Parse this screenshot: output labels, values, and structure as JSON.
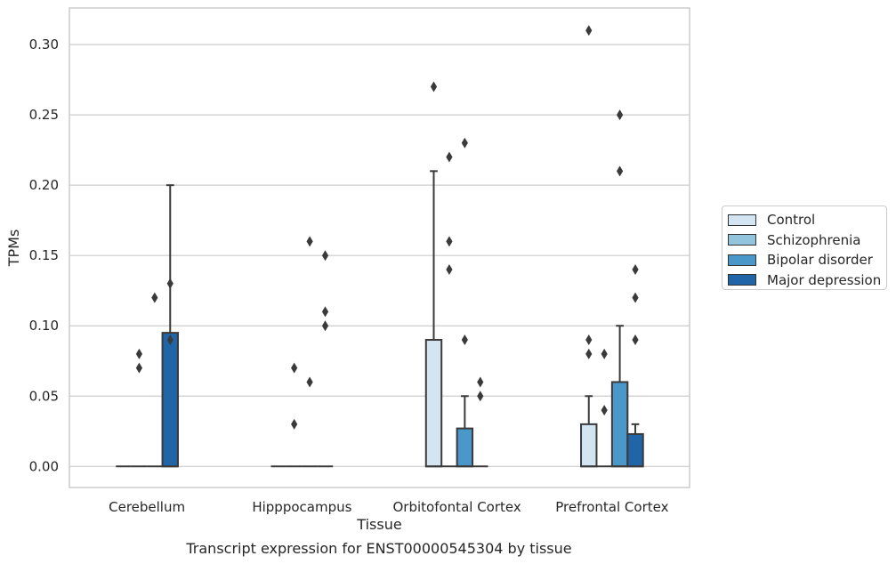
{
  "colors": {
    "Control": "#d3e4f3",
    "Schizophrenia": "#93c4de",
    "Bipolar disorder": "#4a98c9",
    "Major depression": "#2165a9",
    "edge": "#3a3a3a",
    "grid": "#cccccc"
  },
  "chart_data": {
    "type": "boxplot",
    "title": "Transcript expression for ENST00000545304 by tissue",
    "xlabel": "Tissue",
    "ylabel": "TPMs",
    "ylim": [
      -0.015,
      0.326
    ],
    "yticks": [
      "0.00",
      "0.05",
      "0.10",
      "0.15",
      "0.20",
      "0.25",
      "0.30"
    ],
    "categories": [
      "Cerebellum",
      "Hipppocampus",
      "Orbitofontal Cortex",
      "Prefrontal Cortex"
    ],
    "legend_position": "right",
    "grid": true,
    "series": [
      {
        "name": "Control",
        "boxes": [
          {
            "q1": 0,
            "median": 0,
            "q3": 0,
            "whisker_low": 0,
            "whisker_high": 0,
            "outliers": []
          },
          {
            "q1": 0,
            "median": 0,
            "q3": 0,
            "whisker_low": 0,
            "whisker_high": 0,
            "outliers": []
          },
          {
            "q1": 0,
            "median": 0,
            "q3": 0.09,
            "whisker_low": 0,
            "whisker_high": 0.21,
            "outliers": [
              0.27
            ]
          },
          {
            "q1": 0,
            "median": 0,
            "q3": 0.03,
            "whisker_low": 0,
            "whisker_high": 0.05,
            "outliers": [
              0.31,
              0.09,
              0.08
            ]
          }
        ]
      },
      {
        "name": "Schizophrenia",
        "boxes": [
          {
            "q1": 0,
            "median": 0,
            "q3": 0,
            "whisker_low": 0,
            "whisker_high": 0,
            "outliers": [
              0.08,
              0.07
            ]
          },
          {
            "q1": 0,
            "median": 0,
            "q3": 0,
            "whisker_low": 0,
            "whisker_high": 0,
            "outliers": [
              0.07,
              0.03
            ]
          },
          {
            "q1": 0,
            "median": 0,
            "q3": 0,
            "whisker_low": 0,
            "whisker_high": 0,
            "outliers": [
              0.22,
              0.16,
              0.14
            ]
          },
          {
            "q1": 0,
            "median": 0,
            "q3": 0,
            "whisker_low": 0,
            "whisker_high": 0,
            "outliers": [
              0.08,
              0.04
            ]
          }
        ]
      },
      {
        "name": "Bipolar disorder",
        "boxes": [
          {
            "q1": 0,
            "median": 0,
            "q3": 0,
            "whisker_low": 0,
            "whisker_high": 0,
            "outliers": [
              0.12
            ]
          },
          {
            "q1": 0,
            "median": 0,
            "q3": 0,
            "whisker_low": 0,
            "whisker_high": 0,
            "outliers": [
              0.16,
              0.06
            ]
          },
          {
            "q1": 0,
            "median": 0,
            "q3": 0.027,
            "whisker_low": 0,
            "whisker_high": 0.05,
            "outliers": [
              0.23,
              0.09
            ]
          },
          {
            "q1": 0,
            "median": 0,
            "q3": 0.06,
            "whisker_low": 0,
            "whisker_high": 0.1,
            "outliers": [
              0.25,
              0.21
            ]
          }
        ]
      },
      {
        "name": "Major depression",
        "boxes": [
          {
            "q1": 0,
            "median": 0,
            "q3": 0.095,
            "whisker_low": 0,
            "whisker_high": 0.2,
            "outliers": [
              0.13,
              0.09
            ]
          },
          {
            "q1": 0,
            "median": 0,
            "q3": 0,
            "whisker_low": 0,
            "whisker_high": 0,
            "outliers": [
              0.15,
              0.11,
              0.1
            ]
          },
          {
            "q1": 0,
            "median": 0,
            "q3": 0,
            "whisker_low": 0,
            "whisker_high": 0,
            "outliers": [
              0.06,
              0.05
            ]
          },
          {
            "q1": 0,
            "median": 0,
            "q3": 0.023,
            "whisker_low": 0,
            "whisker_high": 0.03,
            "outliers": [
              0.14,
              0.12,
              0.09
            ]
          }
        ]
      }
    ]
  }
}
